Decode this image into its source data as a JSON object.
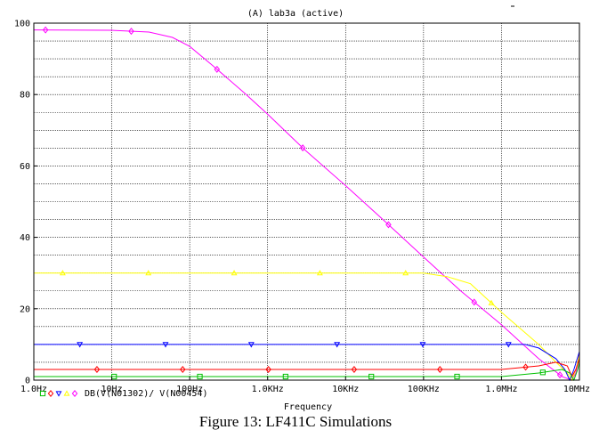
{
  "plot_header": "(A) lab3a (active)",
  "caption": "Figure 13: LF411C Simulations",
  "chart_data": {
    "type": "line",
    "title": "(A) lab3a (active)",
    "xlabel": "Frequency",
    "ylabel": "",
    "x_scale": "log",
    "xlim": [
      1,
      10000000
    ],
    "ylim": [
      0,
      100
    ],
    "grid": true,
    "x_ticks": [
      {
        "value": 1,
        "label": "1.0Hz"
      },
      {
        "value": 10,
        "label": "10Hz"
      },
      {
        "value": 100,
        "label": "100Hz"
      },
      {
        "value": 1000,
        "label": "1.0KHz"
      },
      {
        "value": 10000,
        "label": "10KHz"
      },
      {
        "value": 100000,
        "label": "100KHz"
      },
      {
        "value": 1000000,
        "label": "1.0MHz"
      },
      {
        "value": 10000000,
        "label": "10MHz"
      }
    ],
    "y_ticks": [
      0,
      20,
      40,
      60,
      80,
      100
    ],
    "legend_text": "DB(V(N01302)/ V(N00454)",
    "series": [
      {
        "color": "#ff00ff",
        "marker": "diamond-open",
        "points": [
          [
            1,
            98.1
          ],
          [
            10,
            98
          ],
          [
            30,
            97.5
          ],
          [
            60,
            96
          ],
          [
            100,
            93.5
          ],
          [
            200,
            88
          ],
          [
            500,
            80.5
          ],
          [
            1000,
            74.5
          ],
          [
            3000,
            64.5
          ],
          [
            10000,
            54.5
          ],
          [
            30000,
            45
          ],
          [
            100000,
            34.5
          ],
          [
            300000,
            25
          ],
          [
            1000000,
            15.5
          ],
          [
            3000000,
            6
          ],
          [
            6000000,
            1
          ],
          [
            8000000,
            0
          ],
          [
            9000000,
            2
          ],
          [
            10000000,
            7.5
          ]
        ]
      },
      {
        "color": "#ffff00",
        "marker": "triangle-open",
        "points": [
          [
            1,
            30
          ],
          [
            1000,
            30
          ],
          [
            100000,
            30
          ],
          [
            200000,
            29
          ],
          [
            400000,
            27
          ],
          [
            1000000,
            19
          ],
          [
            3000000,
            10
          ],
          [
            5000000,
            5
          ],
          [
            7000000,
            2
          ],
          [
            8000000,
            0
          ],
          [
            9000000,
            3
          ],
          [
            10000000,
            7
          ]
        ]
      },
      {
        "color": "#0000ff",
        "marker": "triangle-down-open",
        "points": [
          [
            1,
            10
          ],
          [
            1000000,
            10
          ],
          [
            2000000,
            10
          ],
          [
            3000000,
            9
          ],
          [
            5000000,
            6
          ],
          [
            6500000,
            3
          ],
          [
            7500000,
            0
          ],
          [
            8500000,
            3
          ],
          [
            10000000,
            8
          ]
        ]
      },
      {
        "color": "#ff0000",
        "marker": "diamond-open",
        "points": [
          [
            1,
            3
          ],
          [
            1000000,
            3
          ],
          [
            3000000,
            4
          ],
          [
            5000000,
            5
          ],
          [
            7000000,
            4
          ],
          [
            8000000,
            1
          ],
          [
            9000000,
            3
          ],
          [
            10000000,
            6
          ]
        ]
      },
      {
        "color": "#00c000",
        "marker": "square-open",
        "points": [
          [
            1,
            1
          ],
          [
            1000000,
            1
          ],
          [
            3000000,
            2
          ],
          [
            6000000,
            3
          ],
          [
            7500000,
            2
          ],
          [
            8500000,
            0
          ],
          [
            9500000,
            3
          ],
          [
            10000000,
            5
          ]
        ]
      }
    ]
  }
}
